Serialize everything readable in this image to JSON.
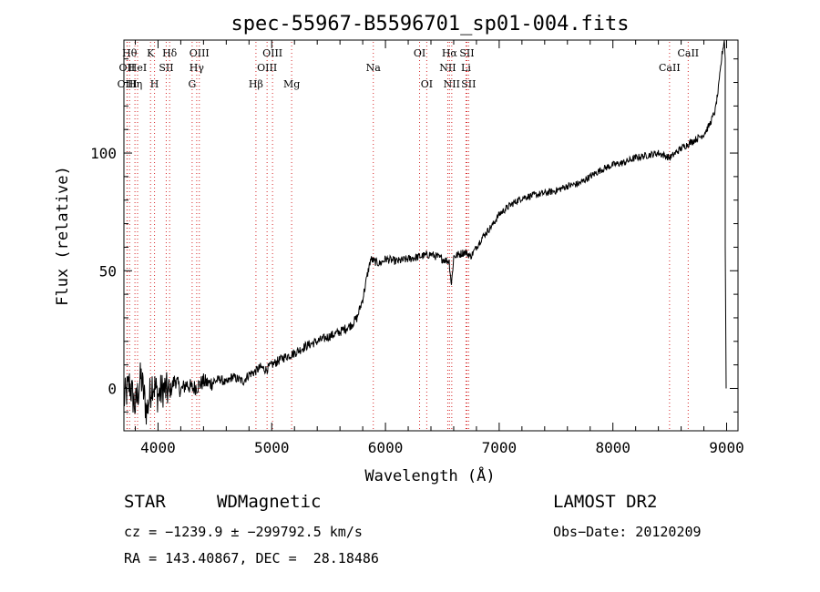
{
  "chart_data": {
    "type": "line",
    "title": "spec-55967-B5596701_sp01-004.fits",
    "xlabel": "Wavelength (Å)",
    "ylabel": "Flux (relative)",
    "xlim": [
      3700,
      9100
    ],
    "ylim": [
      -18,
      148
    ],
    "xticks": [
      4000,
      5000,
      6000,
      7000,
      8000,
      9000
    ],
    "yticks": [
      0,
      50,
      100
    ],
    "grid": false,
    "series": [
      {
        "x": [
          3700,
          3750,
          3800,
          3850,
          3900,
          3950,
          4000,
          4050,
          4100,
          4150,
          4200,
          4250,
          4300,
          4350,
          4400,
          4450,
          4500,
          4550,
          4600,
          4650,
          4700,
          4750,
          4800,
          4850,
          4900,
          4950,
          5000,
          5100,
          5200,
          5300,
          5400,
          5500,
          5600,
          5700,
          5750,
          5800,
          5840,
          5870,
          5900,
          5950,
          6000,
          6100,
          6200,
          6300,
          6400,
          6500,
          6560,
          6580,
          6600,
          6650,
          6700,
          6750,
          6800,
          6850,
          6900,
          6950,
          7000,
          7100,
          7200,
          7300,
          7400,
          7500,
          7600,
          7700,
          7800,
          7900,
          8000,
          8100,
          8200,
          8300,
          8400,
          8500,
          8550,
          8600,
          8700,
          8800,
          8850,
          8900,
          8930,
          8960,
          8980
        ],
        "y": [
          -5,
          2,
          -8,
          5,
          -10,
          3,
          -3,
          0,
          -2,
          4,
          -1,
          2,
          0,
          1,
          3,
          2,
          3,
          4,
          2,
          5,
          4,
          3,
          6,
          7,
          9,
          8,
          10,
          13,
          15,
          18,
          20,
          22,
          24,
          27,
          30,
          38,
          48,
          55,
          54,
          53,
          55,
          54,
          55,
          56,
          57,
          55,
          54,
          44,
          56,
          57,
          58,
          56,
          60,
          64,
          67,
          70,
          74,
          78,
          81,
          82,
          83,
          84,
          86,
          87,
          90,
          93,
          95,
          96,
          98,
          99,
          100,
          98,
          100,
          102,
          105,
          108,
          112,
          118,
          128,
          142,
          148
        ]
      }
    ],
    "line_markers": [
      {
        "wl": 3750,
        "label": "Hθ",
        "row": 1
      },
      {
        "wl": 3727,
        "label": "OII",
        "row": 2
      },
      {
        "wl": 3729,
        "label": "OIII",
        "row": 3
      },
      {
        "wl": 3797,
        "label": "Hη",
        "row": 3
      },
      {
        "wl": 3820,
        "label": "HeI",
        "row": 2
      },
      {
        "wl": 3934,
        "label": "K",
        "row": 1
      },
      {
        "wl": 3969,
        "label": "H",
        "row": 3
      },
      {
        "wl": 4072,
        "label": "SII",
        "row": 2
      },
      {
        "wl": 4102,
        "label": "Hδ",
        "row": 1
      },
      {
        "wl": 4300,
        "label": "G",
        "row": 3
      },
      {
        "wl": 4340,
        "label": "Hγ",
        "row": 2
      },
      {
        "wl": 4363,
        "label": "OIII",
        "row": 1
      },
      {
        "wl": 4861,
        "label": "Hβ",
        "row": 3
      },
      {
        "wl": 4959,
        "label": "OIII",
        "row": 2
      },
      {
        "wl": 5007,
        "label": "OIII",
        "row": 1
      },
      {
        "wl": 5175,
        "label": "Mg",
        "row": 3
      },
      {
        "wl": 5893,
        "label": "Na",
        "row": 2
      },
      {
        "wl": 6300,
        "label": "OI",
        "row": 1
      },
      {
        "wl": 6363,
        "label": "OI",
        "row": 3
      },
      {
        "wl": 6548,
        "label": "NII",
        "row": 2
      },
      {
        "wl": 6563,
        "label": "Hα",
        "row": 1
      },
      {
        "wl": 6583,
        "label": "NII",
        "row": 3
      },
      {
        "wl": 6708,
        "label": "Li",
        "row": 2
      },
      {
        "wl": 6716,
        "label": "SII",
        "row": 1
      },
      {
        "wl": 6731,
        "label": "SII",
        "row": 3
      },
      {
        "wl": 8498,
        "label": "CaII",
        "row": 2
      },
      {
        "wl": 8662,
        "label": "CaII",
        "row": 1
      }
    ]
  },
  "info": {
    "class_label": "STAR",
    "subclass_label": "WDMagnetic",
    "survey": "LAMOST DR2",
    "cz": "cz = −1239.9 ± −299792.5 km/s",
    "obs_date": "Obs−Date: 20120209",
    "radec": "RA = 143.40867, DEC =  28.18486"
  },
  "colors": {
    "line_marker": "#d62728",
    "spectrum": "#000000"
  }
}
